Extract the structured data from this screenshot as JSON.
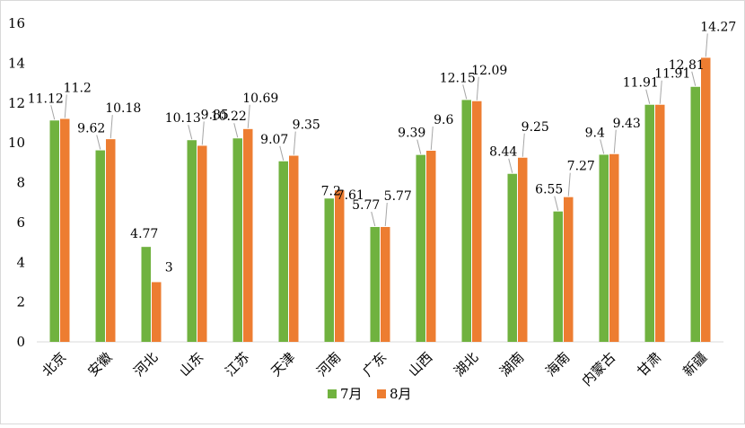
{
  "chart_data": {
    "type": "bar",
    "categories": [
      "北京",
      "安徽",
      "河北",
      "山东",
      "江苏",
      "天津",
      "河南",
      "广东",
      "山西",
      "湖北",
      "湖南",
      "海南",
      "内蒙古",
      "甘肃",
      "新疆"
    ],
    "series": [
      {
        "name": "7月",
        "color": "#70b23f",
        "values": [
          11.12,
          9.62,
          4.77,
          10.13,
          10.22,
          9.07,
          7.2,
          5.77,
          9.39,
          12.15,
          8.44,
          6.55,
          9.4,
          11.91,
          12.81
        ],
        "labels": [
          "11.12",
          "9.62",
          "4.77",
          "10.13",
          "10.22",
          "9.07",
          "7.2",
          "5.77",
          "9.39",
          "12.15",
          "8.44",
          "6.55",
          "9.4",
          "11.91",
          "12.81"
        ]
      },
      {
        "name": "8月",
        "color": "#ed7d31",
        "values": [
          11.2,
          10.18,
          3,
          9.85,
          10.69,
          9.35,
          7.61,
          5.77,
          9.6,
          12.09,
          9.25,
          7.27,
          9.43,
          11.91,
          14.27
        ],
        "labels": [
          "11.2",
          "10.18",
          "3",
          "9.85",
          "10.69",
          "9.35",
          "7.61",
          "5.77",
          "9.6",
          "12.09",
          "9.25",
          "7.27",
          "9.43",
          "11.91",
          "14.27"
        ]
      }
    ],
    "ylim": [
      0,
      16
    ],
    "yticks": [
      "0",
      "2",
      "4",
      "6",
      "8",
      "10",
      "12",
      "14",
      "16"
    ],
    "grid": false,
    "legend": "bottom",
    "title": "",
    "xlabel": "",
    "ylabel": ""
  }
}
